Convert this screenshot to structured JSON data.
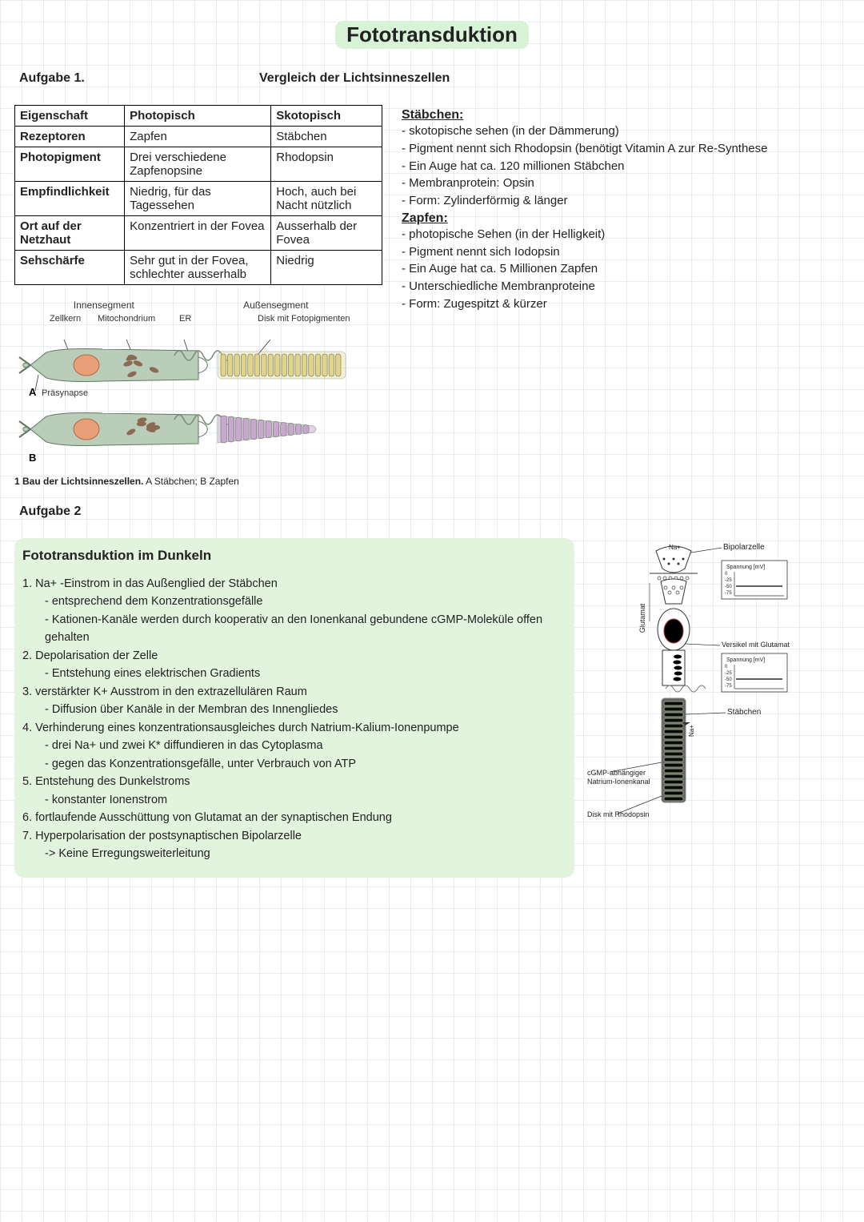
{
  "title": "Fototransduktion",
  "task1": {
    "label": "Aufgabe 1.",
    "title": "Vergleich der Lichtsinneszellen"
  },
  "table": {
    "headers": [
      "Eigenschaft",
      "Photopisch",
      "Skotopisch"
    ],
    "rows": [
      [
        "Rezeptoren",
        "Zapfen",
        "Stäbchen"
      ],
      [
        "Photopigment",
        "Drei verschiedene Zapfenopsine",
        "Rhodopsin"
      ],
      [
        "Empfindlichkeit",
        "Niedrig, für das Tagessehen",
        "Hoch, auch bei Nacht nützlich"
      ],
      [
        "Ort auf der Netzhaut",
        "Konzentriert in der Fovea",
        "Ausserhalb der Fovea"
      ],
      [
        "Sehschärfe",
        "Sehr gut in der Fovea, schlechter ausserhalb",
        "Niedrig"
      ]
    ]
  },
  "notes": {
    "staebchen": {
      "head": "Stäbchen:",
      "lines": [
        "- skotopische sehen (in der Dämmerung)",
        "- Pigment nennt sich Rhodopsin (benötigt Vitamin A zur Re-Synthese",
        "- Ein Auge hat ca. 120 millionen Stäbchen",
        "- Membranprotein: Opsin",
        "- Form: Zylinderförmig & länger"
      ]
    },
    "zapfen": {
      "head": "Zapfen:",
      "lines": [
        "- photopische Sehen (in der Helligkeit)",
        "- Pigment nennt sich Iodopsin",
        "- Ein Auge hat ca. 5 Millionen Zapfen",
        "- Unterschiedliche Membranproteine",
        "- Form: Zugespitzt & kürzer"
      ]
    }
  },
  "cellDiagram": {
    "innensegment": "Innensegment",
    "aussensegment": "Außensegment",
    "zellkern": "Zellkern",
    "mitochondrium": "Mitochondrium",
    "er": "ER",
    "disk": "Disk mit Fotopigmenten",
    "prasynapse": "Präsynapse",
    "letterA": "A",
    "letterB": "B",
    "caption_bold": "1  Bau der Lichtsinneszellen.",
    "caption_rest": " A Stäbchen;  B Zapfen",
    "colors": {
      "membrane": "#b9cdb9",
      "membraneStroke": "#5f7a5f",
      "nucleus": "#e9a07a",
      "nucleusStroke": "#b36a42",
      "mito": "#8a6a52",
      "erStroke": "#7a8c7a",
      "diskA": "#e2d28a",
      "diskB": "#c9a8d0",
      "lead": "#333333"
    }
  },
  "task2": {
    "label": "Aufgabe 2"
  },
  "dark": {
    "title": "Fototransduktion im Dunkeln",
    "items": [
      {
        "n": "1.",
        "t": "Na+ -Einstrom in das Außenglied der Stäbchen",
        "subs": [
          "- entsprechend dem Konzentrationsgefälle",
          "- Kationen-Kanäle werden durch kooperativ an den Ionenkanal gebundene cGMP-Moleküle offen gehalten"
        ]
      },
      {
        "n": "2.",
        "t": "Depolarisation der Zelle",
        "subs": [
          "- Entstehung eines elektrischen Gradients"
        ]
      },
      {
        "n": "3.",
        "t": "verstärkter K+ Ausstrom in den extrazellulären Raum",
        "subs": [
          "- Diffusion über Kanäle in der Membran des Innengliedes"
        ]
      },
      {
        "n": "4.",
        "t": "Verhinderung eines konzentrationsausgleiches durch Natrium-Kalium-Ionenpumpe",
        "subs": [
          "- drei Na+ und zwei K* diffundieren in das Cytoplasma",
          "- gegen das Konzentrationsgefälle, unter Verbrauch von ATP"
        ]
      },
      {
        "n": "5.",
        "t": "Entstehung des Dunkelstroms",
        "subs": [
          "- konstanter Ionenstrom"
        ]
      },
      {
        "n": "6.",
        "t": "fortlaufende Ausschüttung von Glutamat an der synaptischen Endung",
        "subs": []
      },
      {
        "n": "7.",
        "t": "Hyperpolarisation der postsynaptischen Bipolarzelle",
        "subs": [
          "-> Keine Erregungsweiterleitung"
        ]
      }
    ]
  },
  "rod": {
    "bipolar": "Bipolarzelle",
    "spannung": "Spannung [mV]",
    "glutamat": "Glutamat",
    "versikel": "Versikel mit Glutamat",
    "staebchen": "Stäbchen",
    "na": "Na+",
    "cgmp1": "cGMP-abhängiger",
    "cgmp2": "Natrium-Ionenkanal",
    "disk": "Disk mit Rhodopsin",
    "colors": {
      "stroke": "#333",
      "fill": "#fff",
      "nucleus": "#d66",
      "mito": "#7a5a42",
      "outer": "#d7cf9a"
    }
  }
}
